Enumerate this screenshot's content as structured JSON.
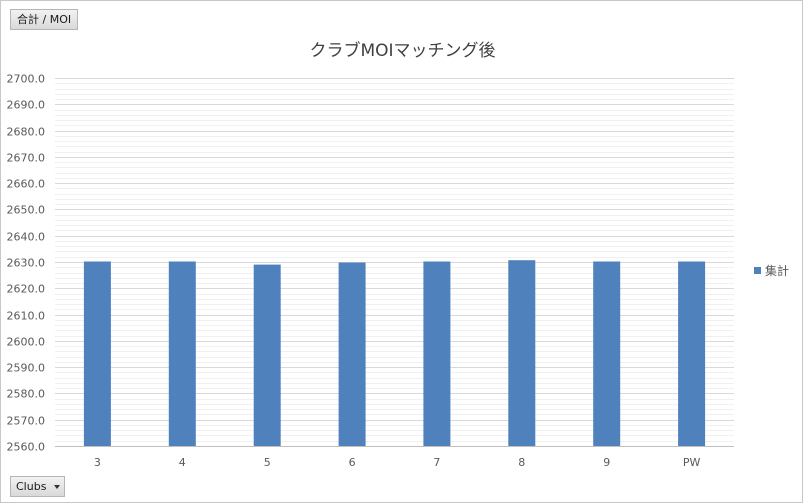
{
  "field_button": {
    "label": "合計 / MOI"
  },
  "axis_button": {
    "label": "Clubs"
  },
  "colors": {
    "series": "#4f81bd",
    "major_grid": "#d9d9d9",
    "minor_grid": "#f0f0f0",
    "text": "#595959"
  },
  "chart_data": {
    "type": "bar",
    "title": "クラブMOIマッチング後",
    "xlabel": "",
    "ylabel": "",
    "categories": [
      "3",
      "4",
      "5",
      "6",
      "7",
      "8",
      "9",
      "PW"
    ],
    "series": [
      {
        "name": "集計",
        "values": [
          2630.2,
          2630.2,
          2629.0,
          2629.8,
          2630.2,
          2630.7,
          2630.2,
          2630.2
        ]
      }
    ],
    "ylim": [
      2560,
      2700
    ],
    "y_major_step": 10,
    "y_minor_step": 2,
    "y_tick_decimals": 1,
    "grid": true,
    "legend_position": "right"
  }
}
